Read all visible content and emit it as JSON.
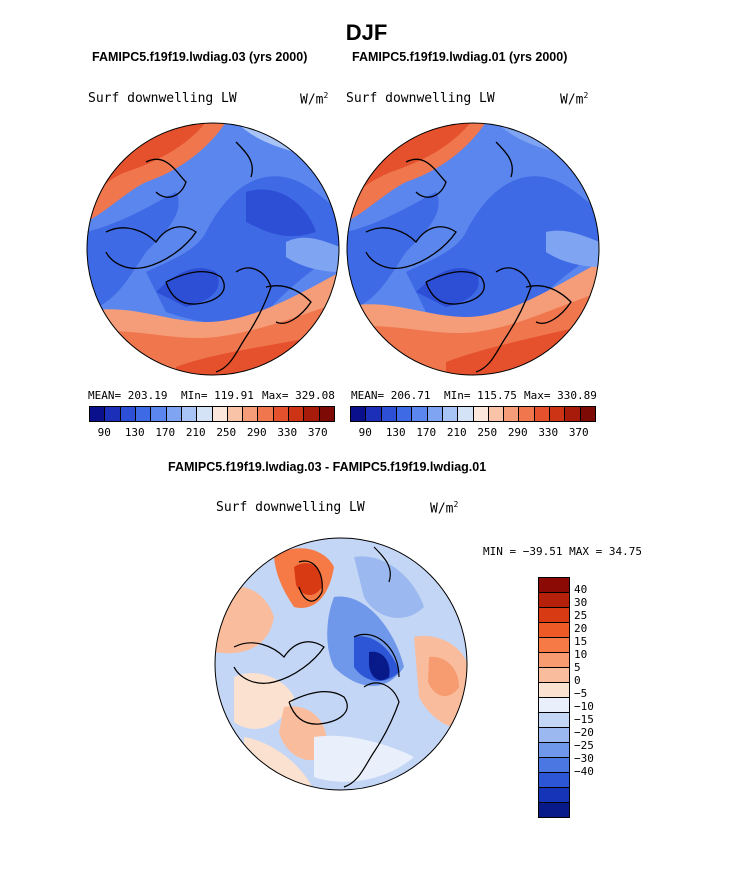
{
  "title": "DJF",
  "left_panel": {
    "case": "FAMIPC5.f19f19.lwdiag.03 (yrs 2000)",
    "variable": "Surf downwelling LW",
    "units_base": "W/m",
    "units_exp": "2",
    "mean": "MEAN= 203.19",
    "min": "MIn= 119.91",
    "max": "Max= 329.08"
  },
  "right_panel": {
    "case": "FAMIPC5.f19f19.lwdiag.01 (yrs 2000)",
    "variable": "Surf downwelling LW",
    "units_base": "W/m",
    "units_exp": "2",
    "mean": "MEAN= 206.71",
    "min": "MIn= 115.75",
    "max": "Max= 330.89"
  },
  "top_colorbar": {
    "labels": [
      "90",
      "130",
      "170",
      "210",
      "250",
      "290",
      "330",
      "370"
    ],
    "colors": [
      "#0a0f8c",
      "#1b2fb8",
      "#2d4fd6",
      "#3f6ae6",
      "#5a86ee",
      "#7ea4f2",
      "#a8c3f5",
      "#d5e3f7",
      "#fbe7dc",
      "#f8c3a7",
      "#f59d78",
      "#f0764e",
      "#e5512c",
      "#cc3415",
      "#a81b0a",
      "#7d0a05"
    ]
  },
  "diff_panel": {
    "title": "FAMIPC5.f19f19.lwdiag.03 - FAMIPC5.f19f19.lwdiag.01",
    "variable": "Surf downwelling LW",
    "units_base": "W/m",
    "units_exp": "2",
    "minmax": "MIN = −39.51 MAX =  34.75"
  },
  "diff_colorbar": {
    "labels": [
      "40",
      "30",
      "25",
      "20",
      "15",
      "10",
      "5",
      "0",
      "−5",
      "−10",
      "−15",
      "−20",
      "−25",
      "−30",
      "−40"
    ],
    "colors": [
      "#8b0a05",
      "#b5200a",
      "#d83a14",
      "#ee5a26",
      "#f57a45",
      "#f79b70",
      "#f9bd9d",
      "#fbe1d0",
      "#eaf0fb",
      "#c4d6f5",
      "#9bb9f0",
      "#6f97ea",
      "#4a77e2",
      "#2c56d6",
      "#1534b8",
      "#081a8a"
    ]
  }
}
